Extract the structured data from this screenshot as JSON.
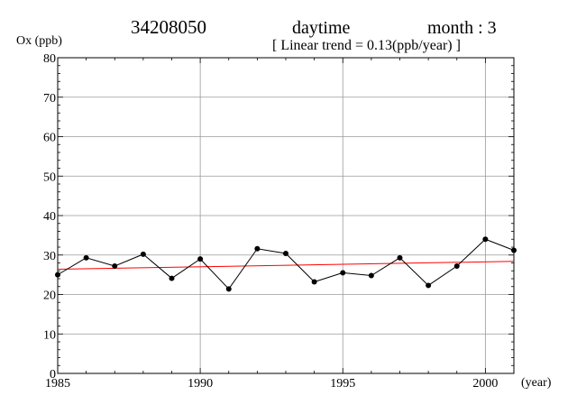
{
  "header": {
    "station": "34208050",
    "period": "daytime",
    "month": "month : 3",
    "trend_label": "[ Linear trend = 0.13(ppb/year) ]"
  },
  "chart_data": {
    "type": "line",
    "ylabel": "Ox (ppb)",
    "xlabel": "(year)",
    "xlim": [
      1985,
      2001
    ],
    "ylim": [
      0,
      80
    ],
    "xticks": [
      1985,
      1990,
      1995,
      2000
    ],
    "yticks": [
      0,
      10,
      20,
      30,
      40,
      50,
      60,
      70,
      80
    ],
    "x_minor_ticks_per_major": 5,
    "y_minor_ticks_per_major": 5,
    "grid": true,
    "series": [
      {
        "x": [
          1985,
          1986,
          1987,
          1988,
          1989,
          1990,
          1991,
          1992,
          1993,
          1994,
          1995,
          1996,
          1997,
          1998,
          1999,
          2000,
          2001
        ],
        "values": [
          25.0,
          29.3,
          27.2,
          30.2,
          24.1,
          29.0,
          21.4,
          31.6,
          30.4,
          23.2,
          25.5,
          24.8,
          29.3,
          22.3,
          27.2,
          34.0,
          31.2
        ],
        "color": "#000000",
        "marker": "circle"
      }
    ],
    "trend_line": {
      "slope": 0.13,
      "start": [
        1985,
        26.4
      ],
      "end": [
        2001,
        28.4
      ],
      "color": "#ff0000"
    }
  }
}
